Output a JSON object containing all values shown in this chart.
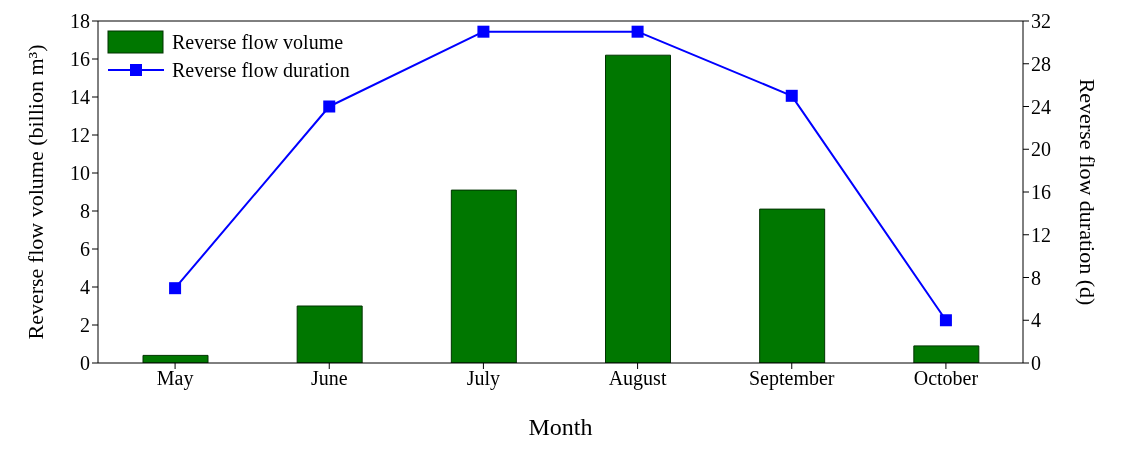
{
  "chart_data": {
    "type": "bar",
    "xlabel": "Month",
    "ylabel": "Reverse flow volume (billion m³)",
    "y2label": "Reverse flow duration (d)",
    "categories": [
      "May",
      "June",
      "July",
      "August",
      "September",
      "October"
    ],
    "series": [
      {
        "name": "Reverse flow volume",
        "color": "#007700",
        "values": [
          0.4,
          3.0,
          9.1,
          16.2,
          8.1,
          0.9
        ]
      },
      {
        "name": "Reverse flow duration",
        "type": "line",
        "axis": "y2",
        "color": "#0000ff",
        "marker": "square",
        "values": [
          7,
          24,
          31,
          31,
          25,
          4
        ]
      }
    ],
    "ylim": [
      0,
      18
    ],
    "yticks": [
      0,
      2,
      4,
      6,
      8,
      10,
      12,
      14,
      16,
      18
    ],
    "y2lim": [
      0,
      32
    ],
    "y2ticks": [
      0,
      4,
      8,
      12,
      16,
      20,
      24,
      28,
      32
    ],
    "legend": "top left",
    "grid": false
  }
}
